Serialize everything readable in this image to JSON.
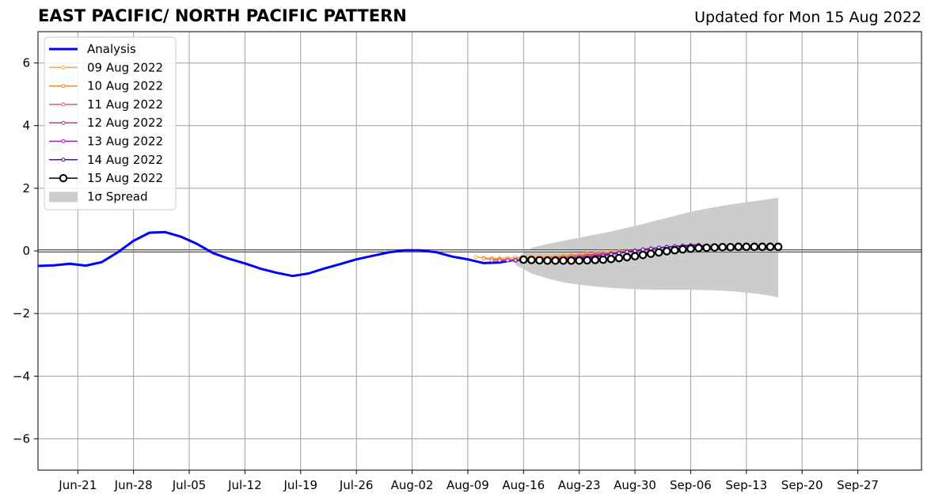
{
  "chart_data": {
    "type": "line",
    "title": "EAST PACIFIC/ NORTH PACIFIC PATTERN",
    "subtitle": "Updated for Mon 15 Aug 2022",
    "xlabel": "",
    "ylabel": "",
    "xlim": [
      "2022-06-16",
      "2022-10-05"
    ],
    "ylim": [
      -7,
      7
    ],
    "yticks": [
      -6,
      -4,
      -2,
      0,
      2,
      4,
      6
    ],
    "ytick_labels": [
      "−6",
      "−4",
      "−2",
      "0",
      "2",
      "4",
      "6"
    ],
    "xticks": [
      "2022-06-21",
      "2022-06-28",
      "2022-07-05",
      "2022-07-12",
      "2022-07-19",
      "2022-07-26",
      "2022-08-02",
      "2022-08-09",
      "2022-08-16",
      "2022-08-23",
      "2022-08-30",
      "2022-09-06",
      "2022-09-13",
      "2022-09-20",
      "2022-09-27"
    ],
    "xtick_labels": [
      "Jun-21",
      "Jun-28",
      "Jul-05",
      "Jul-12",
      "Jul-19",
      "Jul-26",
      "Aug-02",
      "Aug-09",
      "Aug-16",
      "Aug-23",
      "Aug-30",
      "Sep-06",
      "Sep-13",
      "Sep-20",
      "Sep-27"
    ],
    "grid": true,
    "legend_position": "top-left",
    "analysis": {
      "name": "Analysis",
      "color": "#0000ff",
      "x": [
        "2022-06-16",
        "2022-06-18",
        "2022-06-20",
        "2022-06-22",
        "2022-06-24",
        "2022-06-26",
        "2022-06-28",
        "2022-06-30",
        "2022-07-02",
        "2022-07-04",
        "2022-07-06",
        "2022-07-08",
        "2022-07-10",
        "2022-07-12",
        "2022-07-14",
        "2022-07-16",
        "2022-07-18",
        "2022-07-20",
        "2022-07-22",
        "2022-07-24",
        "2022-07-26",
        "2022-07-28",
        "2022-07-30",
        "2022-08-01",
        "2022-08-03",
        "2022-08-05",
        "2022-08-07",
        "2022-08-09",
        "2022-08-11",
        "2022-08-13",
        "2022-08-15"
      ],
      "y": [
        -0.48,
        -0.46,
        -0.41,
        -0.47,
        -0.36,
        -0.05,
        0.32,
        0.58,
        0.6,
        0.45,
        0.22,
        -0.07,
        -0.25,
        -0.4,
        -0.57,
        -0.7,
        -0.8,
        -0.72,
        -0.56,
        -0.42,
        -0.27,
        -0.16,
        -0.05,
        0.02,
        0.02,
        -0.04,
        -0.18,
        -0.27,
        -0.39,
        -0.37,
        -0.28
      ]
    },
    "spread": {
      "name": "1σ Spread",
      "color": "#cccccc",
      "x": [
        "2022-08-15",
        "2022-08-17",
        "2022-08-19",
        "2022-08-21",
        "2022-08-23",
        "2022-08-25",
        "2022-08-27",
        "2022-08-29",
        "2022-08-31",
        "2022-09-02",
        "2022-09-04",
        "2022-09-06",
        "2022-09-08",
        "2022-09-10",
        "2022-09-12",
        "2022-09-14",
        "2022-09-16",
        "2022-09-17"
      ],
      "upper": [
        -0.25,
        0.1,
        0.22,
        0.32,
        0.42,
        0.52,
        0.62,
        0.74,
        0.86,
        0.99,
        1.12,
        1.25,
        1.35,
        1.44,
        1.52,
        1.59,
        1.66,
        1.7
      ],
      "lower": [
        -0.45,
        -0.72,
        -0.88,
        -1.0,
        -1.08,
        -1.14,
        -1.18,
        -1.21,
        -1.23,
        -1.24,
        -1.24,
        -1.24,
        -1.25,
        -1.27,
        -1.31,
        -1.36,
        -1.43,
        -1.48
      ]
    },
    "forecasts": [
      {
        "name": "09 Aug 2022",
        "color": "#fdae2e",
        "start": "2022-08-10",
        "y": [
          -0.2,
          -0.22,
          -0.24,
          -0.23,
          -0.22,
          -0.21,
          -0.2,
          -0.19,
          -0.18,
          -0.17,
          -0.16,
          -0.15,
          -0.13,
          -0.11,
          -0.09,
          -0.07,
          -0.05,
          -0.03,
          -0.01,
          0.01
        ]
      },
      {
        "name": "10 Aug 2022",
        "color": "#f5843c",
        "start": "2022-08-11",
        "y": [
          -0.25,
          -0.26,
          -0.27,
          -0.27,
          -0.26,
          -0.25,
          -0.24,
          -0.23,
          -0.21,
          -0.2,
          -0.18,
          -0.16,
          -0.14,
          -0.12,
          -0.1,
          -0.08,
          -0.06,
          -0.04,
          -0.02,
          0.0
        ]
      },
      {
        "name": "11 Aug 2022",
        "color": "#e05f6c",
        "start": "2022-08-12",
        "y": [
          -0.3,
          -0.3,
          -0.3,
          -0.29,
          -0.28,
          -0.27,
          -0.25,
          -0.23,
          -0.21,
          -0.19,
          -0.17,
          -0.15,
          -0.13,
          -0.11,
          -0.09,
          -0.07,
          -0.05,
          -0.03,
          -0.01,
          0.01,
          0.03
        ]
      },
      {
        "name": "12 Aug 2022",
        "color": "#c13a8c",
        "start": "2022-08-13",
        "y": [
          -0.3,
          -0.31,
          -0.31,
          -0.3,
          -0.29,
          -0.28,
          -0.27,
          -0.25,
          -0.23,
          -0.21,
          -0.19,
          -0.16,
          -0.13,
          -0.1,
          -0.07,
          -0.04,
          -0.01,
          0.02,
          0.05,
          0.08,
          0.1,
          0.12,
          0.14
        ]
      },
      {
        "name": "13 Aug 2022",
        "color": "#9a1fac",
        "start": "2022-08-14",
        "y": [
          -0.3,
          -0.31,
          -0.31,
          -0.31,
          -0.3,
          -0.29,
          -0.28,
          -0.26,
          -0.24,
          -0.22,
          -0.2,
          -0.17,
          -0.14,
          -0.1,
          -0.07,
          -0.03,
          0.0,
          0.04,
          0.07,
          0.1,
          0.13,
          0.15,
          0.17,
          0.19,
          0.2
        ]
      },
      {
        "name": "14 Aug 2022",
        "color": "#5b0ea1",
        "start": "2022-08-15",
        "y": [
          -0.3,
          -0.31,
          -0.32,
          -0.32,
          -0.31,
          -0.3,
          -0.29,
          -0.27,
          -0.25,
          -0.22,
          -0.19,
          -0.15,
          -0.11,
          -0.07,
          -0.03,
          0.0,
          0.04,
          0.07,
          0.1,
          0.12,
          0.14,
          0.15,
          0.16,
          0.17,
          0.17
        ]
      }
    ],
    "current_forecast": {
      "name": "15 Aug 2022",
      "color": "#000000",
      "start": "2022-08-16",
      "y": [
        -0.28,
        -0.29,
        -0.3,
        -0.31,
        -0.31,
        -0.31,
        -0.31,
        -0.31,
        -0.3,
        -0.29,
        -0.28,
        -0.26,
        -0.23,
        -0.2,
        -0.17,
        -0.13,
        -0.09,
        -0.05,
        -0.01,
        0.02,
        0.05,
        0.07,
        0.09,
        0.1,
        0.11,
        0.12,
        0.12,
        0.13,
        0.13,
        0.13,
        0.13,
        0.13,
        0.13
      ]
    }
  }
}
